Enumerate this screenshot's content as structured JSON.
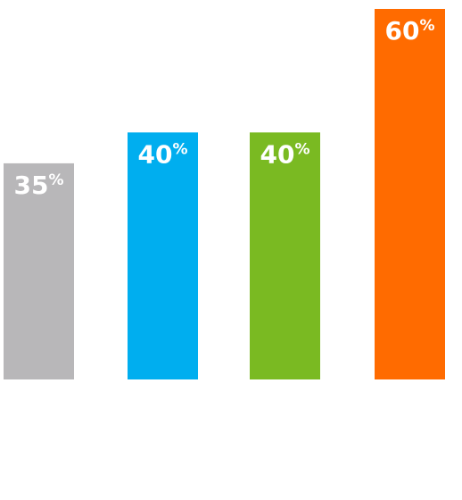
{
  "chart_data": {
    "type": "bar",
    "categories": [
      null,
      null,
      null,
      null
    ],
    "values": [
      35,
      40,
      40,
      60
    ],
    "value_labels": [
      "35%",
      "40%",
      "40%",
      "60%"
    ],
    "colors": [
      "#b8b7b9",
      "#00aeef",
      "#7aba22",
      "#ff6b00"
    ]
  }
}
